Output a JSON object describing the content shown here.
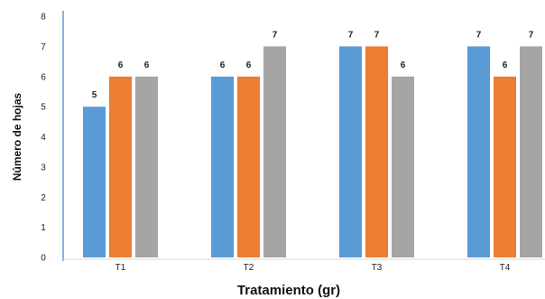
{
  "chart_data": {
    "type": "bar",
    "title": "",
    "xlabel": "Tratamiento (gr)",
    "ylabel": "Número de hojas",
    "categories": [
      "T1",
      "T2",
      "T3",
      "T4"
    ],
    "ylim": [
      0,
      8
    ],
    "yticks": [
      0,
      1,
      2,
      3,
      4,
      5,
      6,
      7,
      8
    ],
    "grid": false,
    "legend": "none",
    "series": [
      {
        "values": [
          5,
          6,
          7,
          7
        ],
        "color": "#5B9BD5"
      },
      {
        "values": [
          6,
          6,
          7,
          6
        ],
        "color": "#ED7D31"
      },
      {
        "values": [
          6,
          7,
          6,
          7
        ],
        "color": "#A5A5A5"
      }
    ],
    "axis_color": "#5B9BD5"
  }
}
